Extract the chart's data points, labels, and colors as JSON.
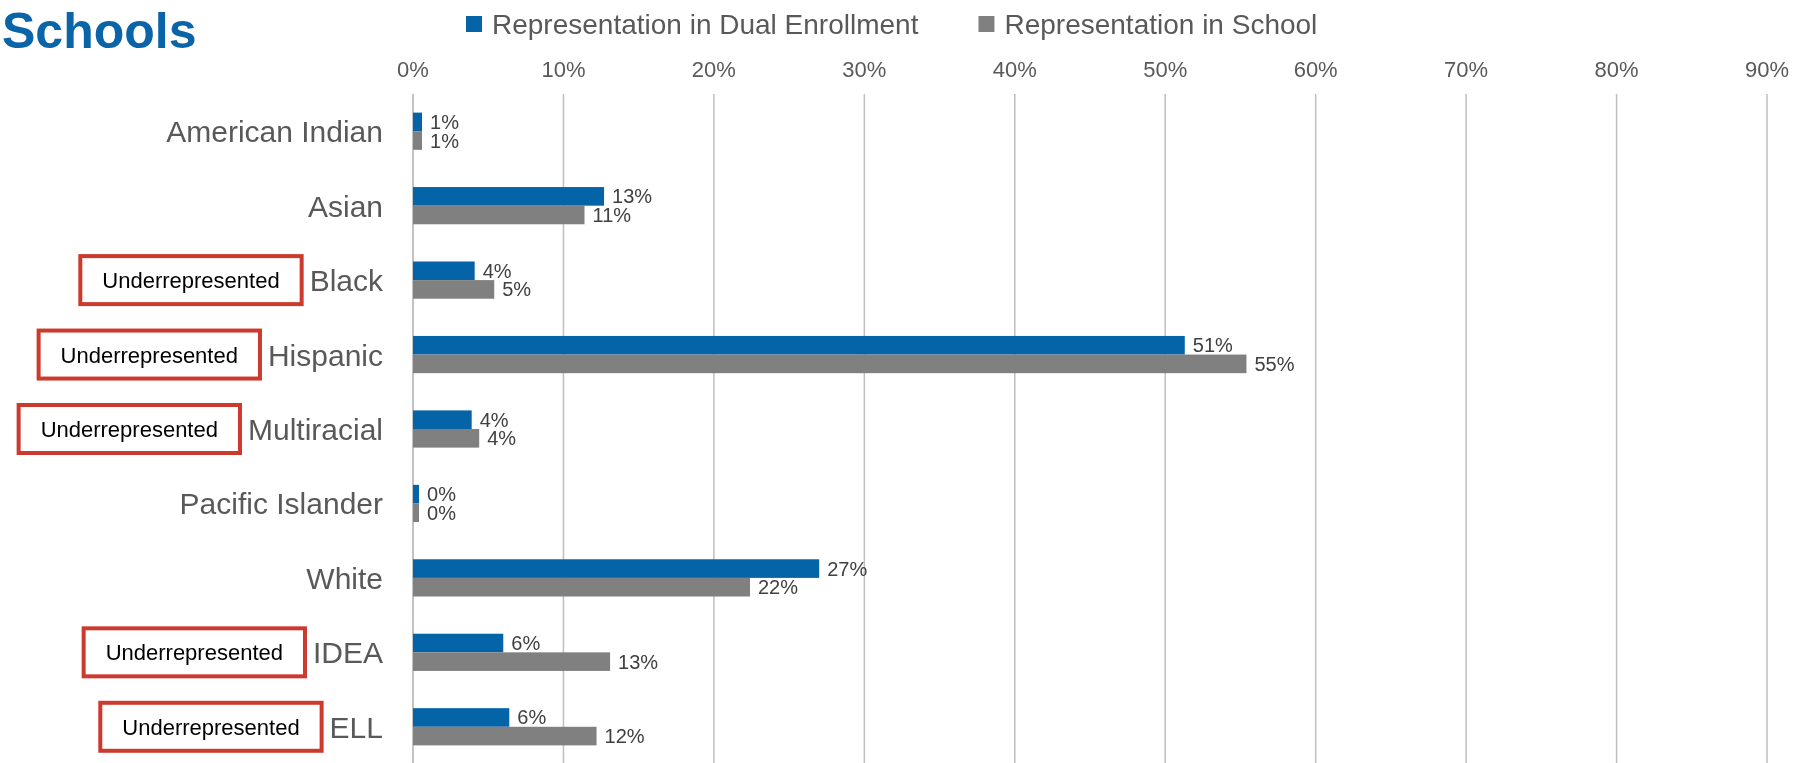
{
  "chart_data": {
    "type": "bar",
    "orientation": "horizontal",
    "title": "Schools",
    "categories": [
      "American Indian",
      "Asian",
      "Black",
      "Hispanic",
      "Multiracial",
      "Pacific Islander",
      "White",
      "IDEA",
      "ELL"
    ],
    "series": [
      {
        "name": "Representation in Dual Enrollment",
        "color": "#0563a8",
        "values": [
          0.6,
          12.7,
          4.1,
          51.3,
          3.9,
          0.4,
          27.0,
          6.0,
          6.4
        ],
        "value_labels": [
          "1%",
          "13%",
          "4%",
          "51%",
          "4%",
          "0%",
          "27%",
          "6%",
          "6%"
        ]
      },
      {
        "name": "Representation in School",
        "color": "#808080",
        "values": [
          0.6,
          11.4,
          5.4,
          55.4,
          4.4,
          0.4,
          22.4,
          13.1,
          12.2
        ],
        "value_labels": [
          "1%",
          "11%",
          "5%",
          "55%",
          "4%",
          "0%",
          "22%",
          "13%",
          "12%"
        ]
      }
    ],
    "xlim": [
      0,
      90
    ],
    "xticks": [
      {
        "value": 0,
        "label": "0%"
      },
      {
        "value": 10,
        "label": "10%"
      },
      {
        "value": 20,
        "label": "20%"
      },
      {
        "value": 30,
        "label": "30%"
      },
      {
        "value": 40,
        "label": "40%"
      },
      {
        "value": 50,
        "label": "50%"
      },
      {
        "value": 60,
        "label": "60%"
      },
      {
        "value": 70,
        "label": "70%"
      },
      {
        "value": 80,
        "label": "80%"
      },
      {
        "value": 90,
        "label": "90%"
      }
    ],
    "grid": "x",
    "legend": "top",
    "annotations": [
      "Underrepresented",
      "Underrepresented",
      "Underrepresented",
      "Underrepresented",
      "Underrepresented"
    ]
  }
}
